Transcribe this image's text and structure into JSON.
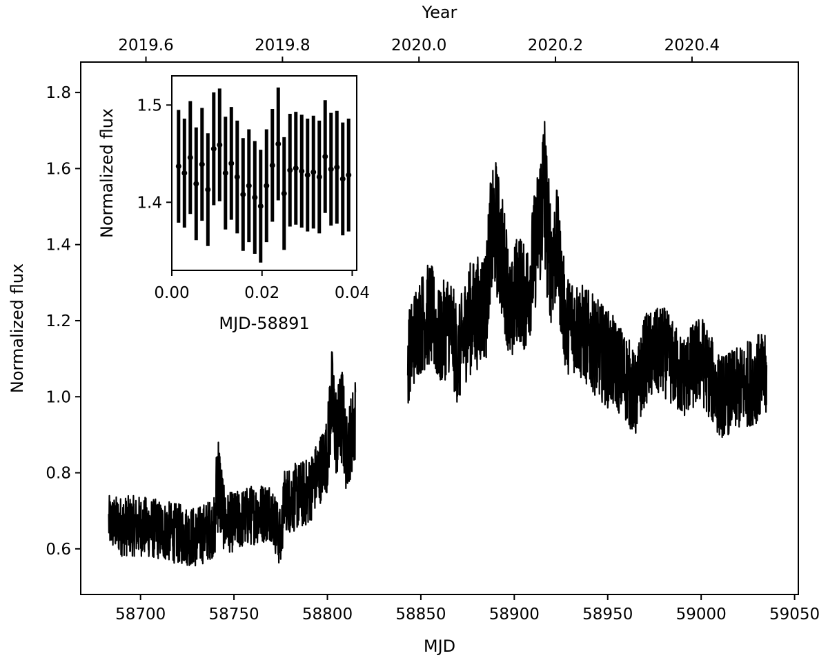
{
  "chart_data": [
    {
      "type": "line",
      "title": "",
      "xlabel": "MJD",
      "ylabel": "Normalized flux",
      "top_xlabel": "Year",
      "xlim": [
        58668,
        59052
      ],
      "ylim": [
        0.48,
        1.88
      ],
      "x_ticks": [
        58700,
        58750,
        58800,
        58850,
        58900,
        58950,
        59000,
        59050
      ],
      "x_tick_labels": [
        "58700",
        "58750",
        "58800",
        "58850",
        "58900",
        "58950",
        "59000",
        "59050"
      ],
      "y_ticks": [
        0.6,
        0.8,
        1.0,
        1.2,
        1.4,
        1.6,
        1.8
      ],
      "y_tick_labels": [
        "0.6",
        "0.8",
        "1.0",
        "1.2",
        "1.4",
        "1.6",
        "1.8"
      ],
      "top_x_ticks": [
        2019.6,
        2019.8,
        2020.0,
        2020.2,
        2020.4
      ],
      "top_x_tick_labels": [
        "2019.6",
        "2019.8",
        "2020.0",
        "2020.2",
        "2020.4"
      ],
      "grid": false,
      "legend": "none",
      "series": [
        {
          "color": "#000000",
          "segments": [
            {
              "x": [
                58683,
                58690,
                58700,
                58710,
                58720,
                58730,
                58740,
                58741,
                58745,
                58750,
                58760,
                58770,
                58775,
                58777,
                58780,
                58790,
                58795,
                58800,
                58802,
                58805,
                58808,
                58810,
                58815
              ],
              "y": [
                0.67,
                0.66,
                0.66,
                0.65,
                0.64,
                0.63,
                0.66,
                0.8,
                0.67,
                0.67,
                0.69,
                0.7,
                0.62,
                0.73,
                0.73,
                0.75,
                0.8,
                0.85,
                1.0,
                0.9,
                0.95,
                0.85,
                0.94
              ],
              "spread": [
                0.07,
                0.08,
                0.08,
                0.08,
                0.08,
                0.08,
                0.08,
                0.16,
                0.08,
                0.08,
                0.08,
                0.08,
                0.08,
                0.08,
                0.09,
                0.09,
                0.09,
                0.1,
                0.15,
                0.12,
                0.14,
                0.1,
                0.12
              ]
            },
            {
              "x": [
                58843,
                58848,
                58855,
                58860,
                58865,
                58870,
                58875,
                58880,
                58885,
                58887,
                58890,
                58893,
                58896,
                58898,
                58902,
                58906,
                58910,
                58913,
                58916,
                58918,
                58920,
                58923,
                58926,
                58928,
                58930,
                58940,
                58950,
                58955,
                58960,
                58965,
                58970,
                58980,
                58990,
                59000,
                59010,
                59020,
                59030,
                59035
              ],
              "y": [
                1.1,
                1.18,
                1.22,
                1.15,
                1.2,
                1.1,
                1.2,
                1.22,
                1.25,
                1.4,
                1.45,
                1.38,
                1.3,
                1.2,
                1.3,
                1.25,
                1.35,
                1.45,
                1.55,
                1.42,
                1.35,
                1.4,
                1.25,
                1.18,
                1.2,
                1.15,
                1.1,
                1.08,
                1.05,
                1.0,
                1.1,
                1.12,
                1.05,
                1.1,
                1.0,
                1.02,
                1.05,
                1.05
              ],
              "spread": [
                0.12,
                0.13,
                0.14,
                0.13,
                0.14,
                0.13,
                0.15,
                0.15,
                0.15,
                0.16,
                0.18,
                0.17,
                0.16,
                0.14,
                0.15,
                0.14,
                0.16,
                0.17,
                0.24,
                0.18,
                0.17,
                0.15,
                0.14,
                0.13,
                0.13,
                0.13,
                0.13,
                0.12,
                0.12,
                0.11,
                0.12,
                0.12,
                0.11,
                0.12,
                0.11,
                0.11,
                0.12,
                0.11
              ]
            }
          ]
        }
      ]
    },
    {
      "type": "scatter",
      "title": "",
      "xlabel": "MJD-58891",
      "ylabel": "Normalized flux",
      "xlim": [
        0,
        0.041
      ],
      "ylim": [
        1.33,
        1.53
      ],
      "x_ticks": [
        0.0,
        0.02,
        0.04
      ],
      "x_tick_labels": [
        "0.00",
        "0.02",
        "0.04"
      ],
      "y_ticks": [
        1.4,
        1.5
      ],
      "y_tick_labels": [
        "1.4",
        "1.5"
      ],
      "grid": false,
      "legend": "none",
      "series": [
        {
          "color": "#000000",
          "x": [
            0.0015,
            0.0028,
            0.0041,
            0.0054,
            0.0067,
            0.008,
            0.0093,
            0.0106,
            0.0119,
            0.0132,
            0.0145,
            0.0158,
            0.0171,
            0.0184,
            0.0197,
            0.021,
            0.0223,
            0.0236,
            0.0249,
            0.0262,
            0.0275,
            0.0288,
            0.0301,
            0.0314,
            0.0327,
            0.034,
            0.0353,
            0.0366,
            0.0379,
            0.0392
          ],
          "y": [
            1.437,
            1.43,
            1.446,
            1.419,
            1.439,
            1.413,
            1.455,
            1.459,
            1.43,
            1.44,
            1.426,
            1.408,
            1.417,
            1.405,
            1.396,
            1.417,
            1.438,
            1.46,
            1.409,
            1.433,
            1.435,
            1.432,
            1.428,
            1.431,
            1.426,
            1.447,
            1.434,
            1.436,
            1.424,
            1.428
          ],
          "err": [
            0.058,
            0.056,
            0.058,
            0.058,
            0.058,
            0.058,
            0.058,
            0.058,
            0.058,
            0.058,
            0.058,
            0.058,
            0.058,
            0.058,
            0.058,
            0.058,
            0.058,
            0.058,
            0.058,
            0.058,
            0.058,
            0.058,
            0.058,
            0.058,
            0.058,
            0.058,
            0.058,
            0.058,
            0.058,
            0.058
          ]
        }
      ]
    }
  ]
}
